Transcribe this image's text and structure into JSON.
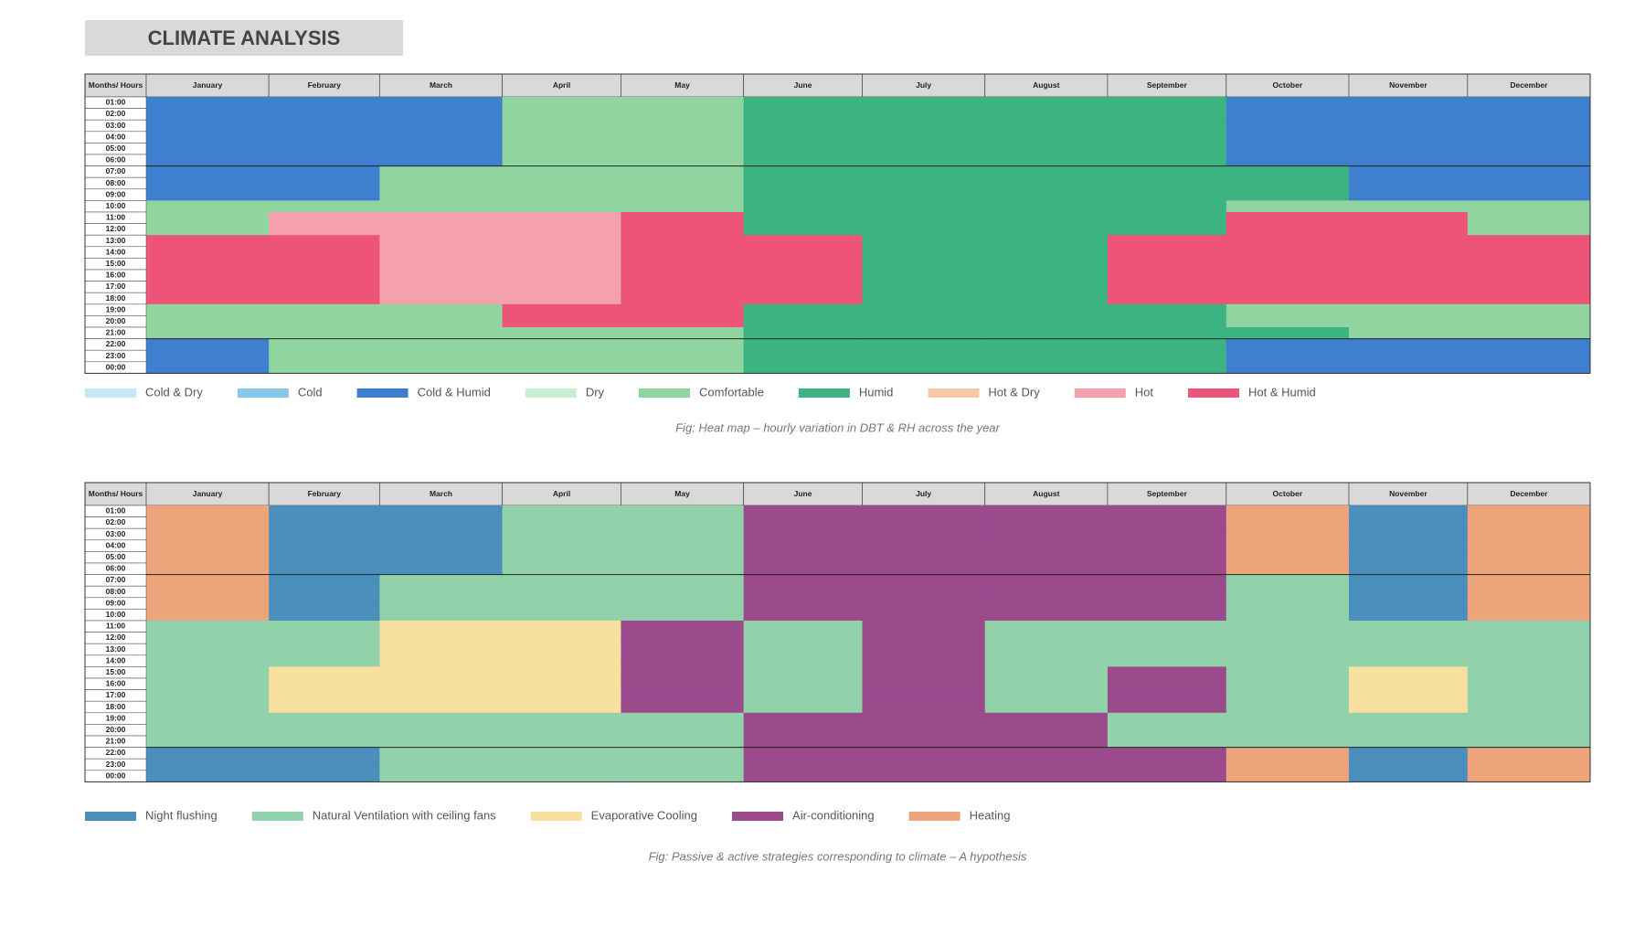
{
  "title": "CLIMATE ANALYSIS",
  "chart_data": [
    {
      "type": "heatmap",
      "corner_label": "Months/ Hours",
      "x_categories": [
        "January",
        "February",
        "March",
        "April",
        "May",
        "June",
        "July",
        "August",
        "September",
        "October",
        "November",
        "December"
      ],
      "y_categories": [
        "01:00",
        "02:00",
        "03:00",
        "04:00",
        "05:00",
        "06:00",
        "07:00",
        "08:00",
        "09:00",
        "10:00",
        "11:00",
        "12:00",
        "13:00",
        "14:00",
        "15:00",
        "16:00",
        "17:00",
        "18:00",
        "19:00",
        "20:00",
        "21:00",
        "22:00",
        "23:00",
        "00:00"
      ],
      "legend": [
        {
          "name": "Cold & Dry",
          "color": "#c6e7f6"
        },
        {
          "name": "Cold",
          "color": "#86c8ea"
        },
        {
          "name": "Cold & Humid",
          "color": "#3f7fcf"
        },
        {
          "name": "Dry",
          "color": "#c9efd2"
        },
        {
          "name": "Comfortable",
          "color": "#90d4a0"
        },
        {
          "name": "Humid",
          "color": "#3bb482"
        },
        {
          "name": "Hot & Dry",
          "color": "#f7c9a8"
        },
        {
          "name": "Hot",
          "color": "#f4a1ad"
        },
        {
          "name": "Hot & Humid",
          "color": "#ee5478"
        }
      ],
      "values": [
        [
          2,
          2,
          2,
          4,
          4,
          5,
          5,
          5,
          5,
          2,
          2,
          2
        ],
        [
          2,
          2,
          2,
          4,
          4,
          5,
          5,
          5,
          5,
          2,
          2,
          2
        ],
        [
          2,
          2,
          2,
          4,
          4,
          5,
          5,
          5,
          5,
          2,
          2,
          2
        ],
        [
          2,
          2,
          2,
          4,
          4,
          5,
          5,
          5,
          5,
          2,
          2,
          2
        ],
        [
          2,
          2,
          2,
          4,
          4,
          5,
          5,
          5,
          5,
          2,
          2,
          2
        ],
        [
          2,
          2,
          2,
          4,
          4,
          5,
          5,
          5,
          5,
          2,
          2,
          2
        ],
        [
          2,
          2,
          4,
          4,
          4,
          5,
          5,
          5,
          5,
          5,
          2,
          2
        ],
        [
          2,
          2,
          4,
          4,
          4,
          5,
          5,
          5,
          5,
          5,
          2,
          2
        ],
        [
          2,
          2,
          4,
          4,
          4,
          5,
          5,
          5,
          5,
          5,
          2,
          2
        ],
        [
          4,
          4,
          4,
          4,
          4,
          5,
          5,
          5,
          5,
          4,
          4,
          4
        ],
        [
          4,
          7,
          7,
          7,
          8,
          5,
          5,
          5,
          5,
          8,
          8,
          4
        ],
        [
          4,
          7,
          7,
          7,
          8,
          5,
          5,
          5,
          5,
          8,
          8,
          4
        ],
        [
          8,
          8,
          7,
          7,
          8,
          8,
          5,
          5,
          8,
          8,
          8,
          8
        ],
        [
          8,
          8,
          7,
          7,
          8,
          8,
          5,
          5,
          8,
          8,
          8,
          8
        ],
        [
          8,
          8,
          7,
          7,
          8,
          8,
          5,
          5,
          8,
          8,
          8,
          8
        ],
        [
          8,
          8,
          7,
          7,
          8,
          8,
          5,
          5,
          8,
          8,
          8,
          8
        ],
        [
          8,
          8,
          7,
          7,
          8,
          8,
          5,
          5,
          8,
          8,
          8,
          8
        ],
        [
          8,
          8,
          7,
          7,
          8,
          8,
          5,
          5,
          8,
          8,
          8,
          8
        ],
        [
          4,
          4,
          4,
          8,
          8,
          5,
          5,
          5,
          5,
          4,
          4,
          4
        ],
        [
          4,
          4,
          4,
          8,
          8,
          5,
          5,
          5,
          5,
          4,
          4,
          4
        ],
        [
          4,
          4,
          4,
          4,
          4,
          5,
          5,
          5,
          5,
          5,
          4,
          4
        ],
        [
          2,
          4,
          4,
          4,
          4,
          5,
          5,
          5,
          5,
          2,
          2,
          2
        ],
        [
          2,
          4,
          4,
          4,
          4,
          5,
          5,
          5,
          5,
          2,
          2,
          2
        ],
        [
          2,
          4,
          4,
          4,
          4,
          5,
          5,
          5,
          5,
          2,
          2,
          2
        ]
      ],
      "caption": "Fig: Heat map – hourly variation in DBT & RH across the year"
    },
    {
      "type": "heatmap",
      "corner_label": "Months/ Hours",
      "x_categories": [
        "January",
        "February",
        "March",
        "April",
        "May",
        "June",
        "July",
        "August",
        "September",
        "October",
        "November",
        "December"
      ],
      "y_categories": [
        "01:00",
        "02:00",
        "03:00",
        "04:00",
        "05:00",
        "06:00",
        "07:00",
        "08:00",
        "09:00",
        "10:00",
        "11:00",
        "12:00",
        "13:00",
        "14:00",
        "15:00",
        "16:00",
        "17:00",
        "18:00",
        "19:00",
        "20:00",
        "21:00",
        "22:00",
        "23:00",
        "00:00"
      ],
      "legend": [
        {
          "name": "Night flushing",
          "color": "#4a8fbc"
        },
        {
          "name": "Natural Ventilation with ceiling fans",
          "color": "#92d2ab"
        },
        {
          "name": "Evaporative Cooling",
          "color": "#f8e0a0"
        },
        {
          "name": "Air-conditioning",
          "color": "#9b4a8c"
        },
        {
          "name": "Heating",
          "color": "#eea47a"
        }
      ],
      "values": [
        [
          4,
          0,
          0,
          1,
          1,
          3,
          3,
          3,
          3,
          4,
          0,
          4
        ],
        [
          4,
          0,
          0,
          1,
          1,
          3,
          3,
          3,
          3,
          4,
          0,
          4
        ],
        [
          4,
          0,
          0,
          1,
          1,
          3,
          3,
          3,
          3,
          4,
          0,
          4
        ],
        [
          4,
          0,
          0,
          1,
          1,
          3,
          3,
          3,
          3,
          4,
          0,
          4
        ],
        [
          4,
          0,
          0,
          1,
          1,
          3,
          3,
          3,
          3,
          4,
          0,
          4
        ],
        [
          4,
          0,
          0,
          1,
          1,
          3,
          3,
          3,
          3,
          4,
          0,
          4
        ],
        [
          4,
          0,
          1,
          1,
          1,
          3,
          3,
          3,
          3,
          1,
          0,
          4
        ],
        [
          4,
          0,
          1,
          1,
          1,
          3,
          3,
          3,
          3,
          1,
          0,
          4
        ],
        [
          4,
          0,
          1,
          1,
          1,
          3,
          3,
          3,
          3,
          1,
          0,
          4
        ],
        [
          4,
          0,
          1,
          1,
          1,
          3,
          3,
          3,
          3,
          1,
          0,
          4
        ],
        [
          1,
          1,
          2,
          2,
          3,
          1,
          3,
          1,
          1,
          1,
          1,
          1
        ],
        [
          1,
          1,
          2,
          2,
          3,
          1,
          3,
          1,
          1,
          1,
          1,
          1
        ],
        [
          1,
          1,
          2,
          2,
          3,
          1,
          3,
          1,
          1,
          1,
          1,
          1
        ],
        [
          1,
          1,
          2,
          2,
          3,
          1,
          3,
          1,
          1,
          1,
          1,
          1
        ],
        [
          1,
          2,
          2,
          2,
          3,
          1,
          3,
          1,
          3,
          1,
          2,
          1
        ],
        [
          1,
          2,
          2,
          2,
          3,
          1,
          3,
          1,
          3,
          1,
          2,
          1
        ],
        [
          1,
          2,
          2,
          2,
          3,
          1,
          3,
          1,
          3,
          1,
          2,
          1
        ],
        [
          1,
          2,
          2,
          2,
          3,
          1,
          3,
          1,
          3,
          1,
          2,
          1
        ],
        [
          1,
          1,
          1,
          1,
          1,
          3,
          3,
          3,
          1,
          1,
          1,
          1
        ],
        [
          1,
          1,
          1,
          1,
          1,
          3,
          3,
          3,
          1,
          1,
          1,
          1
        ],
        [
          1,
          1,
          1,
          1,
          1,
          3,
          3,
          3,
          1,
          1,
          1,
          1
        ],
        [
          0,
          0,
          1,
          1,
          1,
          3,
          3,
          3,
          3,
          4,
          0,
          4
        ],
        [
          0,
          0,
          1,
          1,
          1,
          3,
          3,
          3,
          3,
          4,
          0,
          4
        ],
        [
          0,
          0,
          1,
          1,
          1,
          3,
          3,
          3,
          3,
          4,
          0,
          4
        ]
      ],
      "caption": "Fig: Passive & active strategies corresponding to climate – A hypothesis"
    }
  ]
}
